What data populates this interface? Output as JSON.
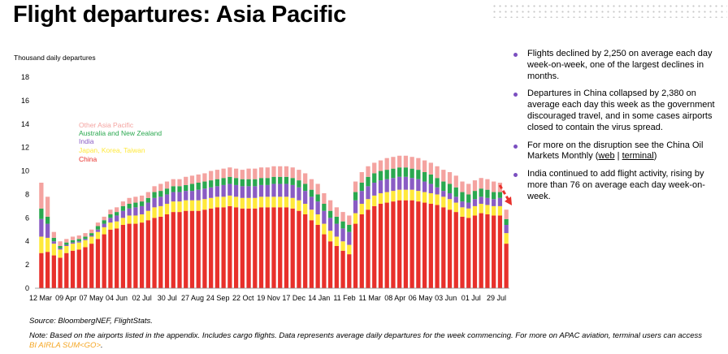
{
  "title": "Flight departures: Asia Pacific",
  "bullets": [
    {
      "text": "Flights declined by 2,250 on average each day week-on-week, one of the largest declines in months."
    },
    {
      "text": "Departures in China collapsed by 2,380 on average each day this week as the government discouraged travel, and in some cases airports closed to contain the virus spread."
    },
    {
      "text_before": "For more on the disruption see the China Oil Markets Monthly (",
      "link1": "web",
      "separator": " | ",
      "link2": "terminal",
      "text_after": ")"
    },
    {
      "text": "India continued to add flight activity, rising by more than 76 on average each day week-on-week."
    }
  ],
  "source": "Source: BloombergNEF, FlightStats.",
  "note": {
    "text": "Note: Based on the airports listed in the appendix. Includes cargo flights. Data represents average daily departures for the week commencing. For more on APAC aviation, terminal users can access",
    "link": "BI AIRLA SUM<GO>",
    "end": "."
  },
  "colors": {
    "China": "#e8302b",
    "Japan, Korea, Taiwan": "#ffe93b",
    "India": "#8a5cc4",
    "Australia and New Zealand": "#2aa84f",
    "Other Asia Pacific": "#f4a3a0",
    "bullet": "#7b4fc0",
    "arrow": "#e8302b"
  },
  "chart_data": {
    "type": "bar",
    "stacked": true,
    "ylabel": "Thousand daily departures",
    "ylim": [
      0,
      18
    ],
    "yticks": [
      0,
      2,
      4,
      6,
      8,
      10,
      12,
      14,
      16,
      18
    ],
    "categories_count": 75,
    "xtick_labels": [
      "12 Mar",
      "09 Apr",
      "07 May",
      "04 Jun",
      "02 Jul",
      "30 Jul",
      "27 Aug",
      "24 Sep",
      "22 Oct",
      "19 Nov",
      "17 Dec",
      "14 Jan",
      "11 Feb",
      "11 Mar",
      "08 Apr",
      "06 May",
      "03 Jun",
      "01 Jul",
      "29 Jul"
    ],
    "legend_order": [
      "Other Asia Pacific",
      "Australia and New Zealand",
      "India",
      "Japan, Korea, Taiwan",
      "China"
    ],
    "series": [
      {
        "name": "China",
        "values": [
          3.0,
          3.1,
          2.8,
          2.6,
          3.0,
          3.2,
          3.3,
          3.5,
          3.8,
          4.2,
          4.6,
          5.0,
          5.1,
          5.4,
          5.5,
          5.5,
          5.6,
          5.8,
          6.0,
          6.1,
          6.3,
          6.5,
          6.5,
          6.6,
          6.6,
          6.6,
          6.7,
          6.8,
          6.9,
          6.9,
          7.0,
          6.9,
          6.8,
          6.8,
          6.8,
          6.9,
          6.9,
          6.9,
          6.9,
          6.9,
          6.8,
          6.6,
          6.3,
          5.8,
          5.4,
          4.6,
          4.0,
          3.6,
          3.2,
          2.9,
          5.5,
          6.3,
          6.7,
          7.0,
          7.2,
          7.3,
          7.4,
          7.5,
          7.5,
          7.5,
          7.4,
          7.3,
          7.2,
          7.1,
          6.9,
          6.7,
          6.5,
          6.1,
          6.0,
          6.2,
          6.4,
          6.3,
          6.2,
          6.2,
          3.8
        ]
      },
      {
        "name": "Japan, Korea, Taiwan",
        "values": [
          1.4,
          1.2,
          1.0,
          0.7,
          0.6,
          0.6,
          0.6,
          0.6,
          0.6,
          0.6,
          0.6,
          0.6,
          0.6,
          0.6,
          0.7,
          0.7,
          0.7,
          0.8,
          0.9,
          0.9,
          0.9,
          0.9,
          0.9,
          0.9,
          0.9,
          0.9,
          0.9,
          0.9,
          0.9,
          0.9,
          0.9,
          0.9,
          0.9,
          0.9,
          0.9,
          0.9,
          0.9,
          0.9,
          0.9,
          0.9,
          0.9,
          0.9,
          0.9,
          0.9,
          0.9,
          0.9,
          0.9,
          0.8,
          0.8,
          0.8,
          0.9,
          0.9,
          0.9,
          0.9,
          0.9,
          0.9,
          0.9,
          0.9,
          0.9,
          0.9,
          0.9,
          0.9,
          0.9,
          0.9,
          0.9,
          0.9,
          0.8,
          0.8,
          0.8,
          0.8,
          0.8,
          0.8,
          0.8,
          0.8,
          0.9
        ]
      },
      {
        "name": "India",
        "values": [
          1.5,
          1.2,
          0.2,
          0.1,
          0.1,
          0.1,
          0.1,
          0.1,
          0.1,
          0.2,
          0.3,
          0.4,
          0.5,
          0.6,
          0.6,
          0.7,
          0.7,
          0.7,
          0.8,
          0.8,
          0.8,
          0.8,
          0.8,
          0.8,
          0.8,
          0.9,
          0.9,
          0.9,
          0.9,
          1.0,
          1.0,
          1.0,
          1.0,
          1.0,
          1.0,
          1.0,
          1.0,
          1.1,
          1.1,
          1.1,
          1.1,
          1.1,
          1.1,
          1.1,
          1.1,
          1.1,
          1.1,
          1.1,
          1.1,
          1.1,
          1.1,
          1.1,
          1.1,
          1.1,
          1.1,
          1.1,
          1.1,
          1.1,
          1.1,
          1.0,
          1.0,
          0.9,
          0.8,
          0.6,
          0.5,
          0.5,
          0.5,
          0.5,
          0.5,
          0.6,
          0.6,
          0.6,
          0.6,
          0.7,
          0.7
        ]
      },
      {
        "name": "Australia and New Zealand",
        "values": [
          0.9,
          0.6,
          0.3,
          0.2,
          0.2,
          0.2,
          0.2,
          0.2,
          0.2,
          0.3,
          0.3,
          0.3,
          0.3,
          0.4,
          0.4,
          0.4,
          0.4,
          0.4,
          0.5,
          0.5,
          0.5,
          0.5,
          0.5,
          0.5,
          0.6,
          0.6,
          0.6,
          0.6,
          0.6,
          0.6,
          0.6,
          0.6,
          0.6,
          0.6,
          0.6,
          0.6,
          0.6,
          0.6,
          0.6,
          0.6,
          0.6,
          0.6,
          0.6,
          0.6,
          0.6,
          0.6,
          0.6,
          0.6,
          0.6,
          0.6,
          0.7,
          0.7,
          0.8,
          0.8,
          0.8,
          0.8,
          0.8,
          0.8,
          0.8,
          0.8,
          0.8,
          0.8,
          0.8,
          0.8,
          0.8,
          0.8,
          0.8,
          0.8,
          0.7,
          0.7,
          0.7,
          0.7,
          0.6,
          0.5,
          0.5
        ]
      },
      {
        "name": "Other Asia Pacific",
        "values": [
          2.2,
          1.7,
          0.5,
          0.4,
          0.3,
          0.3,
          0.3,
          0.3,
          0.3,
          0.3,
          0.3,
          0.4,
          0.4,
          0.4,
          0.5,
          0.5,
          0.5,
          0.5,
          0.5,
          0.6,
          0.6,
          0.6,
          0.6,
          0.7,
          0.7,
          0.7,
          0.7,
          0.8,
          0.8,
          0.8,
          0.8,
          0.8,
          0.8,
          0.9,
          0.9,
          0.9,
          0.9,
          0.9,
          0.9,
          0.9,
          0.9,
          0.9,
          0.9,
          0.9,
          0.9,
          0.9,
          0.9,
          0.8,
          0.8,
          0.8,
          0.9,
          0.9,
          0.9,
          0.9,
          0.9,
          1.0,
          1.0,
          1.0,
          1.0,
          1.0,
          1.0,
          1.0,
          1.0,
          1.0,
          1.0,
          1.0,
          1.0,
          0.9,
          0.9,
          0.9,
          0.9,
          0.9,
          0.9,
          0.8,
          0.8
        ]
      }
    ]
  }
}
